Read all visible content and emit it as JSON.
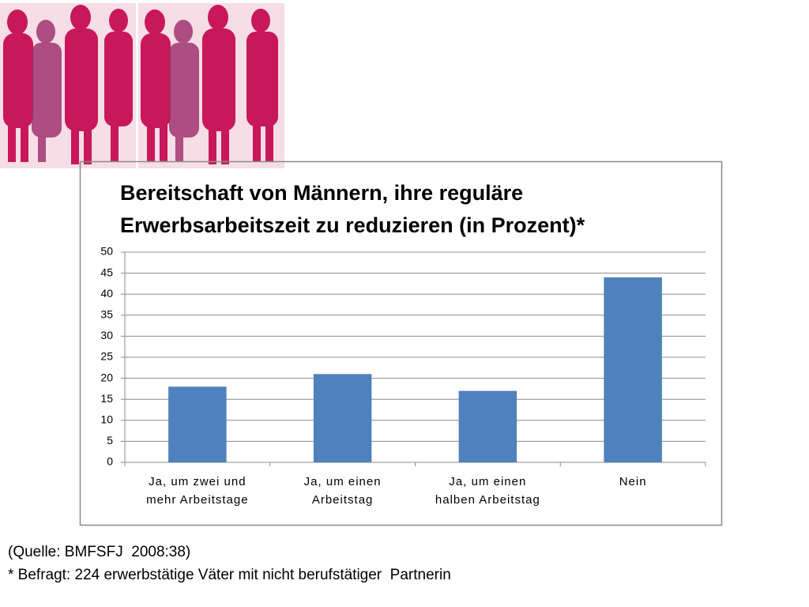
{
  "chart_data": {
    "type": "bar",
    "title": "Bereitschaft von Männern, ihre reguläre Erwerbsarbeitszeit zu reduzieren (in Prozent)*",
    "categories": [
      "Ja, um zwei und mehr Arbeitstage",
      "Ja, um einen Arbeitstag",
      "Ja, um einen halben Arbeitstag",
      "Nein"
    ],
    "values": [
      18,
      21,
      17,
      44
    ],
    "color": "#4f81bd",
    "ylim": [
      0,
      50
    ],
    "yticks": [
      0,
      5,
      10,
      15,
      20,
      25,
      30,
      35,
      40,
      45,
      50
    ],
    "grid": true
  },
  "footer": {
    "source": "(Quelle: BMFSFJ  2008:38)",
    "note": "* Befragt: 224 erwerbstätige Väter mit nicht berufstätiger  Partnerin"
  }
}
